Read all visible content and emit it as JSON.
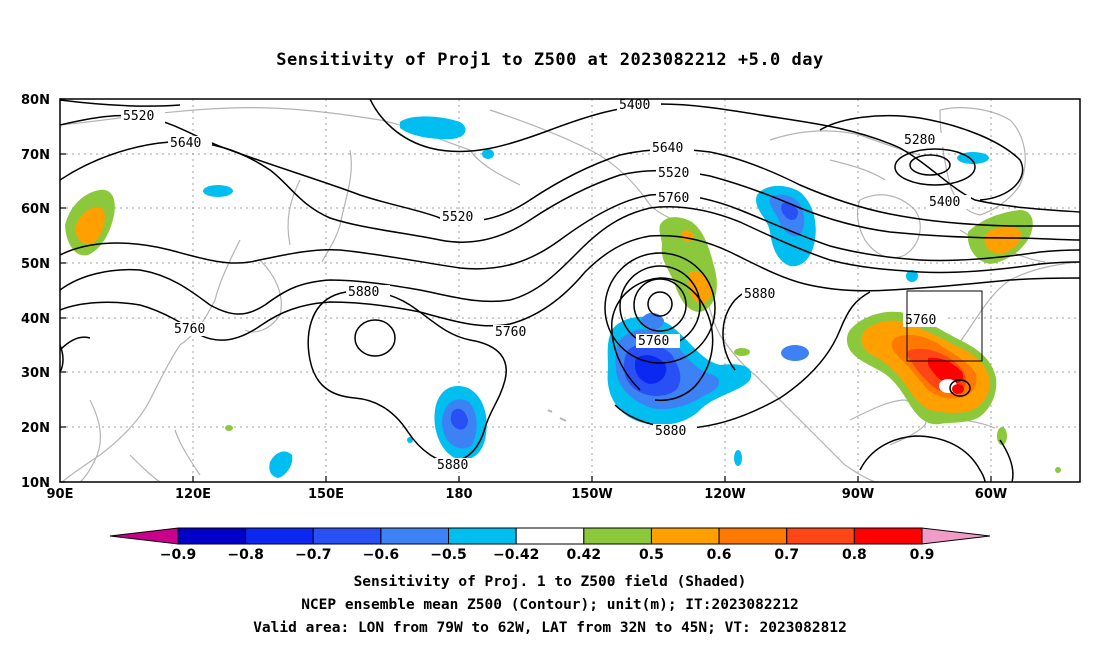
{
  "title": "Sensitivity of Proj1 to Z500 at 2023082212 +5.0 day",
  "footer": {
    "line1": "Sensitivity of Proj. 1 to Z500 field (Shaded)",
    "line2": "NCEP ensemble mean Z500 (Contour); unit(m); IT:2023082212",
    "line3": "Valid area: LON from 79W to 62W, LAT from 32N to 45N; VT: 2023082812"
  },
  "map": {
    "lon_range": [
      "90E",
      "50W"
    ],
    "lat_range": [
      "10N",
      "80N"
    ],
    "lat_labels": [
      "80N",
      "70N",
      "60N",
      "50N",
      "40N",
      "30N",
      "20N",
      "10N"
    ],
    "lon_labels": [
      "90E",
      "120E",
      "150E",
      "180",
      "150W",
      "120W",
      "90W",
      "60W"
    ],
    "grid": "dotted",
    "coastline_color": "#b4b4b4",
    "contour_labels": [
      "5520",
      "5640",
      "5400",
      "5520",
      "5640",
      "5760",
      "5280",
      "5400",
      "5520",
      "5880",
      "5760",
      "5760",
      "5880",
      "5760",
      "5880",
      "5880"
    ],
    "valid_area_box": {
      "lon": [
        "79W",
        "62W"
      ],
      "lat": [
        "32N",
        "45N"
      ]
    }
  },
  "colorbar": {
    "labels": [
      "-0.9",
      "-0.8",
      "-0.7",
      "-0.6",
      "-0.5",
      "-0.42",
      "0.42",
      "0.5",
      "0.6",
      "0.7",
      "0.8",
      "0.9"
    ],
    "colors": [
      "#c8008c",
      "#0000c8",
      "#0a28f0",
      "#2850f5",
      "#3c82f5",
      "#00bef0",
      "#ffffff",
      "#8cc83c",
      "#ffa000",
      "#ff7800",
      "#ff4614",
      "#ff0000",
      "#f09bc8"
    ]
  }
}
